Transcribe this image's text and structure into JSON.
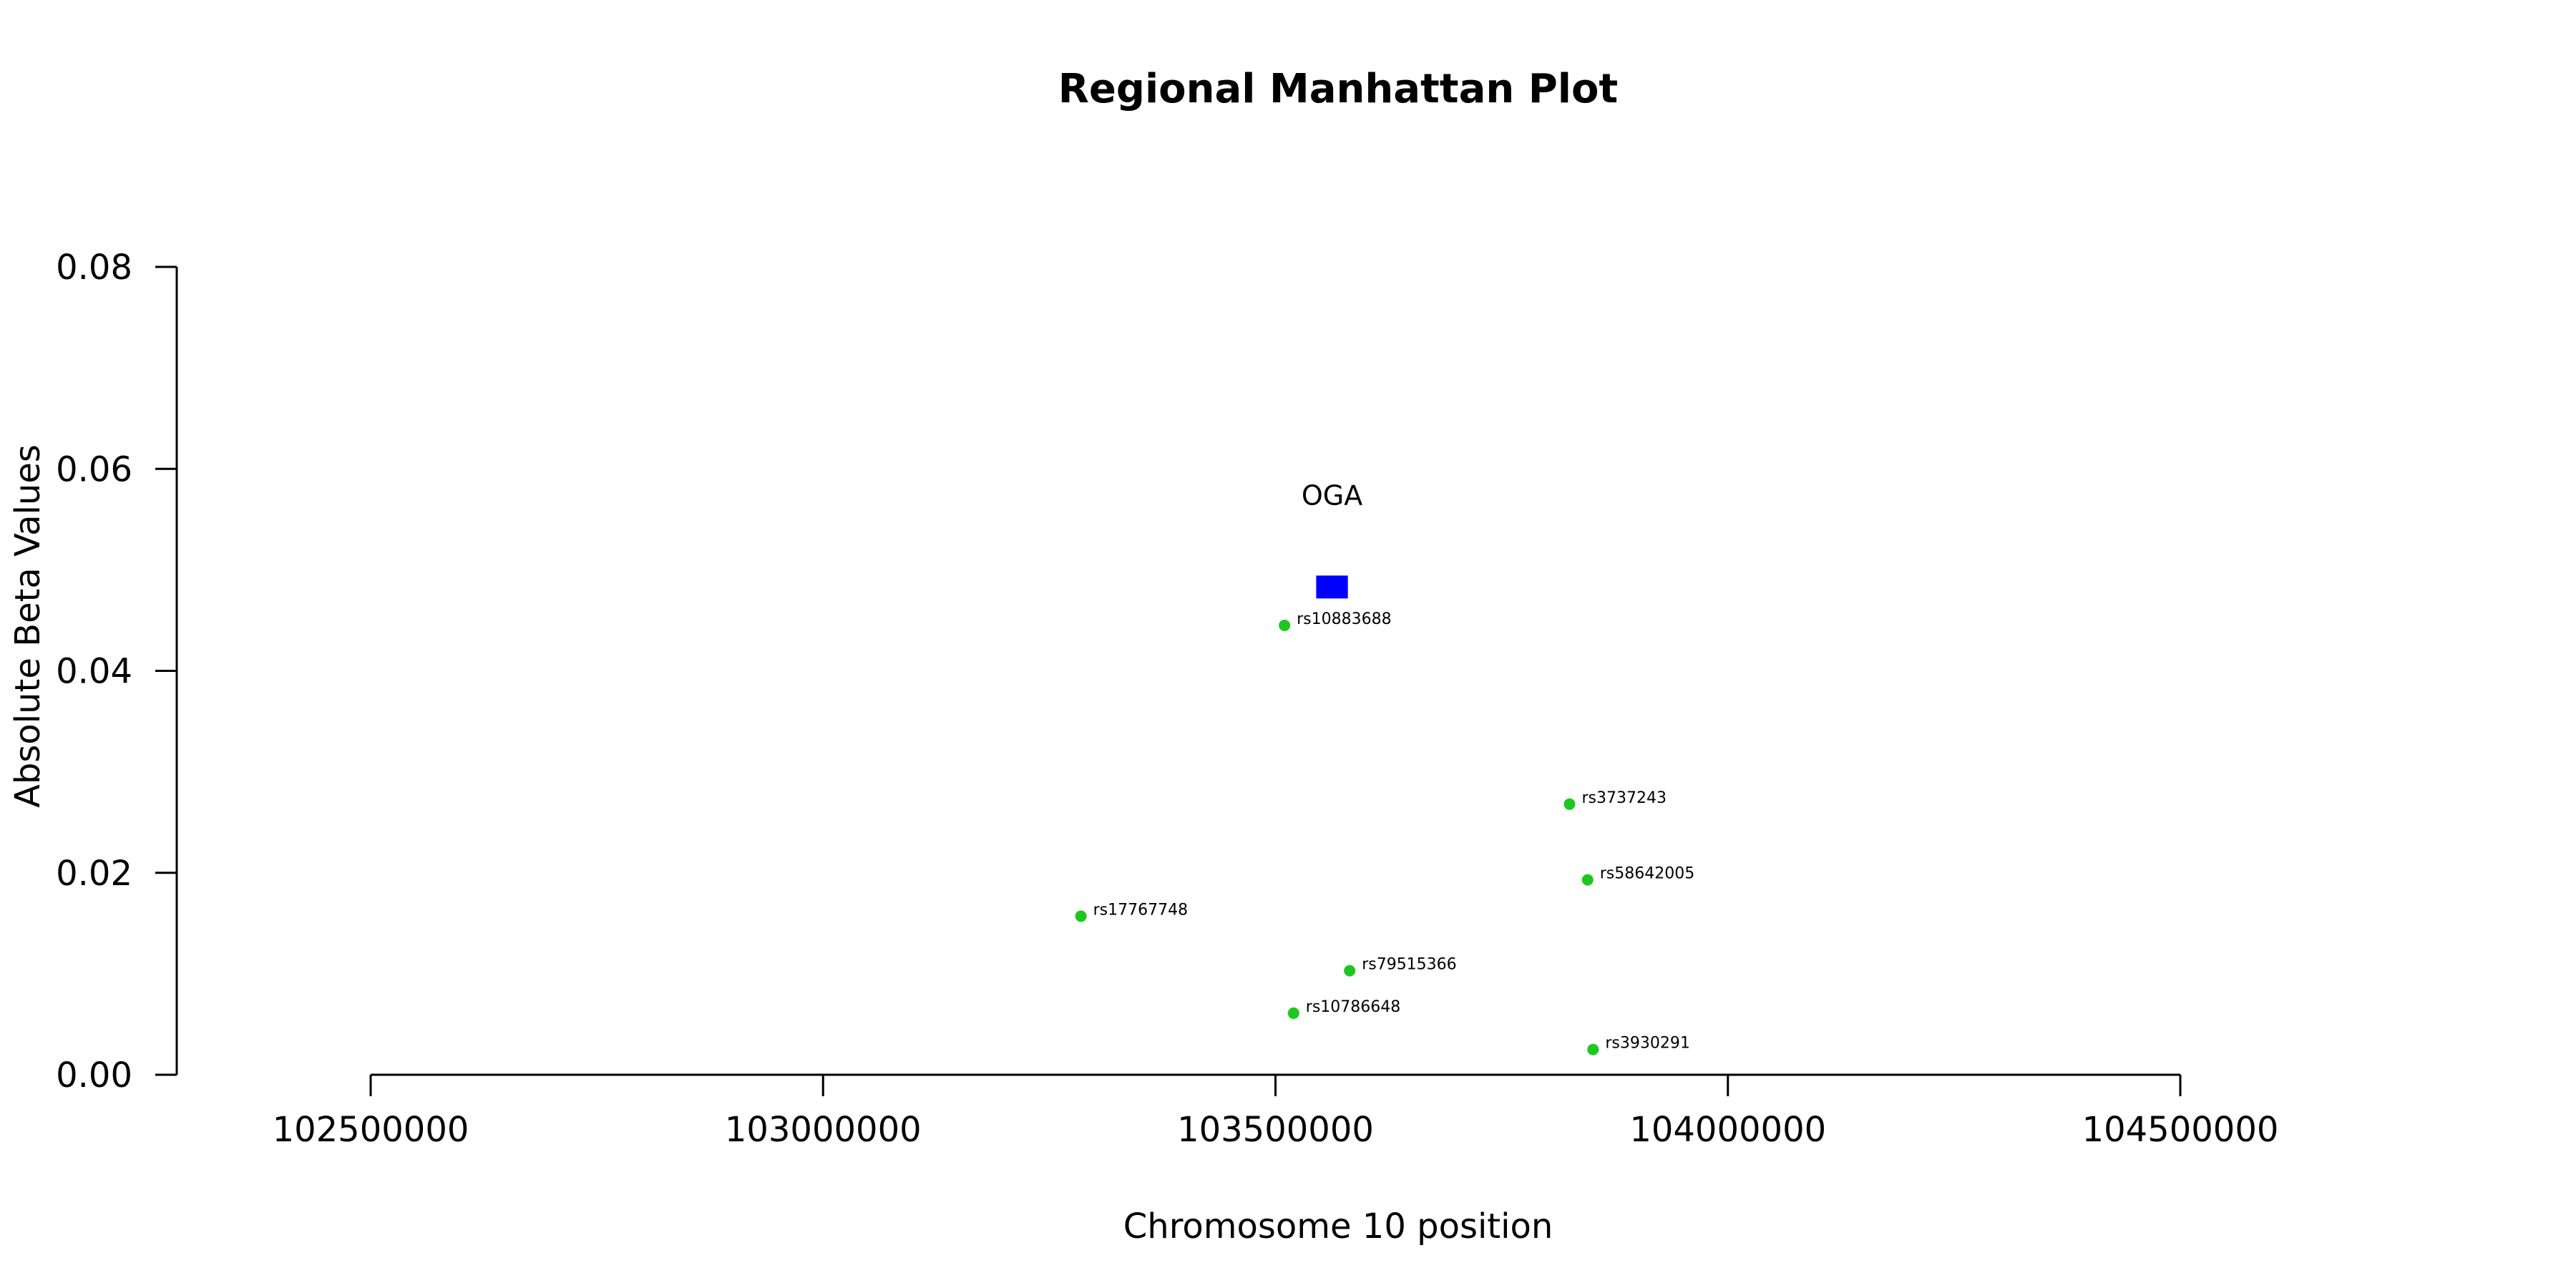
{
  "chart_data": {
    "type": "scatter",
    "title": "Regional Manhattan Plot",
    "xlabel": "Chromosome 10 position",
    "ylabel": "Absolute Beta Values",
    "xlim": [
      102500000,
      104500000
    ],
    "ylim": [
      0,
      0.08
    ],
    "x_ticks": [
      102500000,
      103000000,
      103500000,
      104000000,
      104500000
    ],
    "x_tick_labels": [
      "102500000",
      "103000000",
      "103500000",
      "104000000",
      "104500000"
    ],
    "y_ticks": [
      0,
      0.02,
      0.04,
      0.06,
      0.08
    ],
    "y_tick_labels": [
      "0.00",
      "0.02",
      "0.04",
      "0.06",
      "0.08"
    ],
    "grid": false,
    "point_color": "#1ec71e",
    "points": [
      {
        "label": "rs10883688",
        "x": 103510000,
        "y": 0.0445
      },
      {
        "label": "rs3737243",
        "x": 103825000,
        "y": 0.0268
      },
      {
        "label": "rs58642005",
        "x": 103845000,
        "y": 0.0193
      },
      {
        "label": "rs17767748",
        "x": 103285000,
        "y": 0.0157
      },
      {
        "label": "rs79515366",
        "x": 103582000,
        "y": 0.0103
      },
      {
        "label": "rs10786648",
        "x": 103520000,
        "y": 0.0061
      },
      {
        "label": "rs3930291",
        "x": 103851000,
        "y": 0.0025
      }
    ],
    "gene": {
      "name": "OGA",
      "x_start": 103545000,
      "x_end": 103580000,
      "y": 0.0483,
      "color": "#0000ff"
    }
  }
}
